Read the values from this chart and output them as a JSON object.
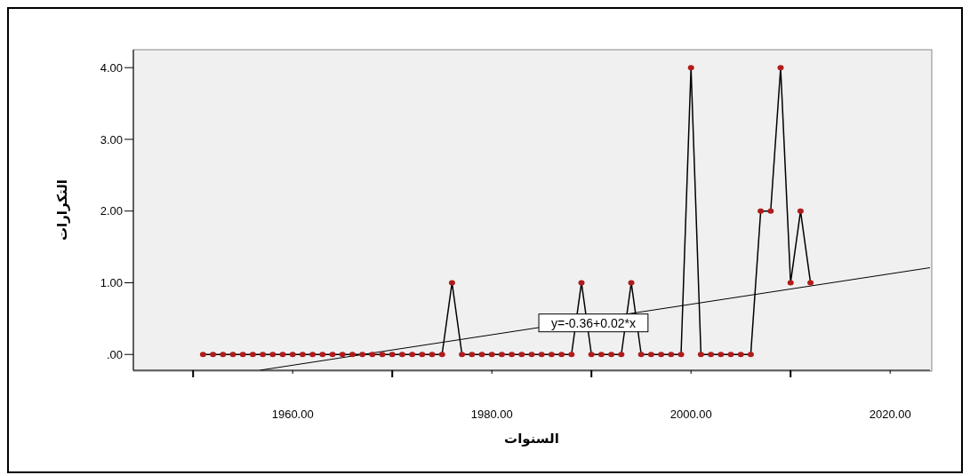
{
  "chart_data": {
    "type": "line",
    "xlabel": "السنوات",
    "ylabel": "التكرارات",
    "x": [
      1951,
      1952,
      1953,
      1954,
      1955,
      1956,
      1957,
      1958,
      1959,
      1960,
      1961,
      1962,
      1963,
      1964,
      1965,
      1966,
      1967,
      1968,
      1969,
      1970,
      1971,
      1972,
      1973,
      1974,
      1975,
      1976,
      1977,
      1978,
      1979,
      1980,
      1981,
      1982,
      1983,
      1984,
      1985,
      1986,
      1987,
      1988,
      1989,
      1990,
      1991,
      1992,
      1993,
      1994,
      1995,
      1996,
      1997,
      1998,
      1999,
      2000,
      2001,
      2002,
      2003,
      2004,
      2005,
      2006,
      2007,
      2008,
      2009,
      2010,
      2011,
      2012
    ],
    "series": [
      {
        "color": "#b01c1c",
        "values": [
          0,
          0,
          0,
          0,
          0,
          0,
          0,
          0,
          0,
          0,
          0,
          0,
          0,
          0,
          0,
          0,
          0,
          0,
          0,
          0,
          0,
          0,
          0,
          0,
          0,
          1,
          0,
          0,
          0,
          0,
          0,
          0,
          0,
          0,
          0,
          0,
          0,
          0,
          1,
          0,
          0,
          0,
          0,
          1,
          0,
          0,
          0,
          0,
          0,
          4,
          0,
          0,
          0,
          0,
          0,
          0,
          2,
          2,
          4,
          1,
          2,
          1
        ]
      },
      {
        "type": "line",
        "color": "#000000",
        "marker": "none",
        "x": [
          1956.7,
          2024
        ],
        "values": [
          -0.22,
          1.21
        ]
      }
    ],
    "annotations": [
      {
        "text": "y=-0.36+0.02*x",
        "x": 1990.2,
        "y": 0.44
      }
    ],
    "xlim": [
      1944,
      2024
    ],
    "ylim": [
      -0.22,
      4.25
    ],
    "xticks": [
      {
        "value": 1950,
        "label": null
      },
      {
        "value": 1960,
        "label": "1960.00"
      },
      {
        "value": 1970,
        "label": null
      },
      {
        "value": 1980,
        "label": "1980.00"
      },
      {
        "value": 1990,
        "label": null
      },
      {
        "value": 2000,
        "label": "2000.00"
      },
      {
        "value": 2010,
        "label": null
      },
      {
        "value": 2020,
        "label": "2020.00"
      }
    ],
    "yticks": [
      {
        "value": 0,
        "label": ".00"
      },
      {
        "value": 1,
        "label": "1.00"
      },
      {
        "value": 2,
        "label": "2.00"
      },
      {
        "value": 3,
        "label": "3.00"
      },
      {
        "value": 4,
        "label": "4.00"
      }
    ],
    "grid": false,
    "legend": false,
    "marker": "circle",
    "line_style": "solid"
  }
}
